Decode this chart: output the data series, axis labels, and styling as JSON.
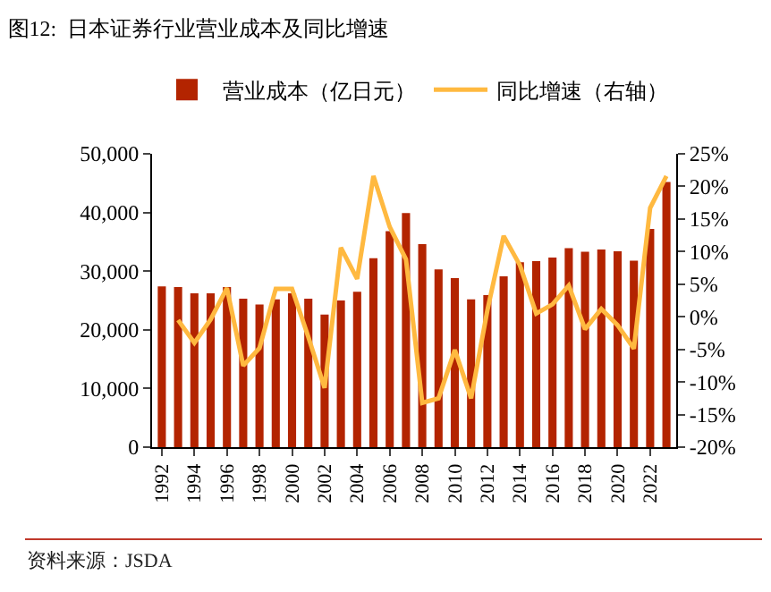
{
  "chart_data": {
    "type": "bar",
    "title": "图12:  日本证券行业营业成本及同比增速",
    "x": [
      1992,
      1993,
      1994,
      1995,
      1996,
      1997,
      1998,
      1999,
      2000,
      2001,
      2002,
      2003,
      2004,
      2005,
      2006,
      2007,
      2008,
      2009,
      2010,
      2011,
      2012,
      2013,
      2014,
      2015,
      2016,
      2017,
      2018,
      2019,
      2020,
      2021,
      2022,
      2023
    ],
    "series": [
      {
        "name": "营业成本（亿日元）",
        "color": "#b32400",
        "values": [
          27400,
          27300,
          26200,
          26200,
          27300,
          25300,
          24300,
          25200,
          26200,
          25300,
          22600,
          25000,
          26500,
          32200,
          36800,
          39900,
          34600,
          30300,
          28800,
          25200,
          25900,
          29100,
          31500,
          31700,
          32300,
          33900,
          33300,
          33700,
          33400,
          31800,
          37200,
          45200
        ]
      },
      {
        "name": "同比增速（右轴）",
        "type": "line",
        "axis": "y2",
        "color": "#ffb940",
        "values": [
          null,
          -0.5,
          -4.0,
          -0.4,
          4.4,
          -7.5,
          -4.8,
          4.3,
          4.3,
          -3.1,
          -10.9,
          10.6,
          5.8,
          21.6,
          13.8,
          8.8,
          -13.2,
          -12.5,
          -5.1,
          -12.5,
          1.0,
          12.4,
          7.9,
          0.5,
          1.9,
          4.8,
          -1.9,
          1.2,
          -1.3,
          -4.9,
          16.7,
          21.6
        ]
      }
    ],
    "xlim": [
      1991.4,
      2023.6
    ],
    "xticks": [
      1992,
      1994,
      1996,
      1998,
      2000,
      2002,
      2004,
      2006,
      2008,
      2010,
      2012,
      2014,
      2016,
      2018,
      2020,
      2022
    ],
    "ylim": [
      0,
      50000
    ],
    "yticks": [
      0,
      {
        "value": 10000,
        "label": "10,000"
      },
      {
        "value": 20000,
        "label": "20,000"
      },
      {
        "value": 30000,
        "label": "30,000"
      },
      {
        "value": 40000,
        "label": "40,000"
      },
      {
        "value": 50000,
        "label": "50,000"
      }
    ],
    "y2lim": [
      -20,
      25
    ],
    "y2ticks": [
      {
        "value": -20,
        "label": "-20%"
      },
      {
        "value": -15,
        "label": "-15%"
      },
      {
        "value": -10,
        "label": "-10%"
      },
      {
        "value": -5,
        "label": "-5%"
      },
      {
        "value": 0,
        "label": "0%"
      },
      {
        "value": 5,
        "label": "5%"
      },
      {
        "value": 10,
        "label": "10%"
      },
      {
        "value": 15,
        "label": "15%"
      },
      {
        "value": 20,
        "label": "20%"
      },
      {
        "value": 25,
        "label": "25%"
      }
    ],
    "legend": "top",
    "annotations": [
      "资料来源：JSDA"
    ]
  }
}
